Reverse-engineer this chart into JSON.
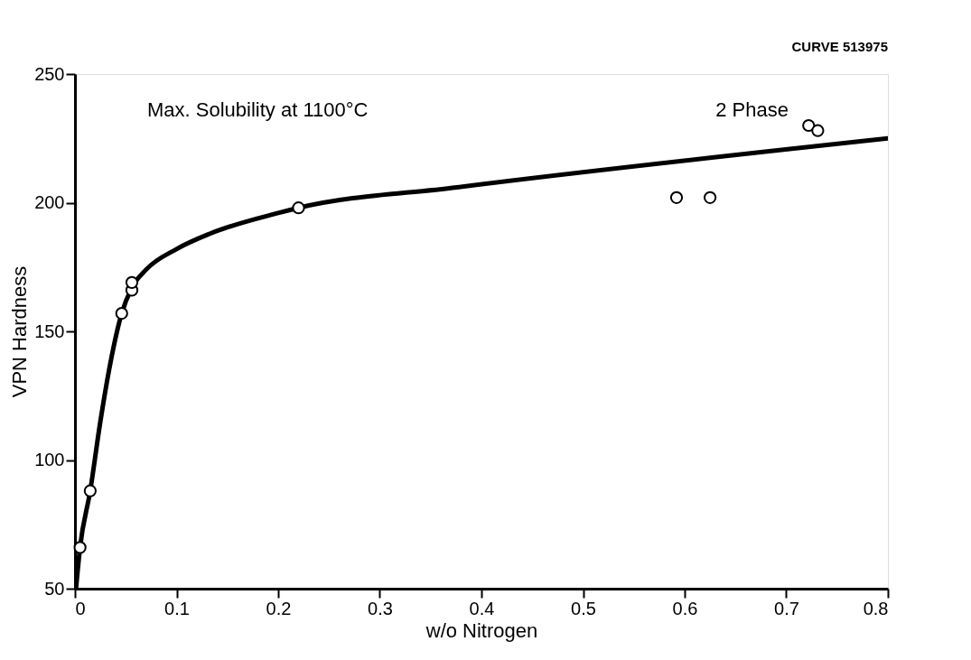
{
  "chart_data": {
    "type": "scatter",
    "xlabel": "w/o Nitrogen",
    "ylabel": "VPN Hardness",
    "xlim": [
      0,
      0.8
    ],
    "ylim": [
      50,
      250
    ],
    "xticks": [
      0,
      0.1,
      0.2,
      0.3,
      0.4,
      0.5,
      0.6,
      0.7,
      0.8
    ],
    "yticks": [
      50,
      100,
      150,
      200,
      250
    ],
    "grid": false,
    "legend": false,
    "series": [
      {
        "type": "line",
        "color": "#000000",
        "marker": "none",
        "line_style": "solid",
        "x": [
          0.001,
          0.005,
          0.015,
          0.025,
          0.035,
          0.046,
          0.056,
          0.07,
          0.1,
          0.133,
          0.2,
          0.22,
          0.376,
          0.8
        ],
        "values": [
          50,
          66,
          88,
          115,
          138,
          157,
          167,
          174,
          182,
          188,
          196,
          198,
          206,
          225
        ]
      },
      {
        "color": "#000000",
        "marker": "circle",
        "x": [
          0.005,
          0.015,
          0.046,
          0.056,
          0.056,
          0.22,
          0.592,
          0.625,
          0.722,
          0.731
        ],
        "values": [
          66,
          88,
          157,
          166,
          169,
          198,
          202,
          202,
          230,
          228
        ]
      }
    ],
    "annotations": [
      "CURVE 513975",
      "Max. Solubility at 1100°C",
      "2 Phase"
    ]
  }
}
